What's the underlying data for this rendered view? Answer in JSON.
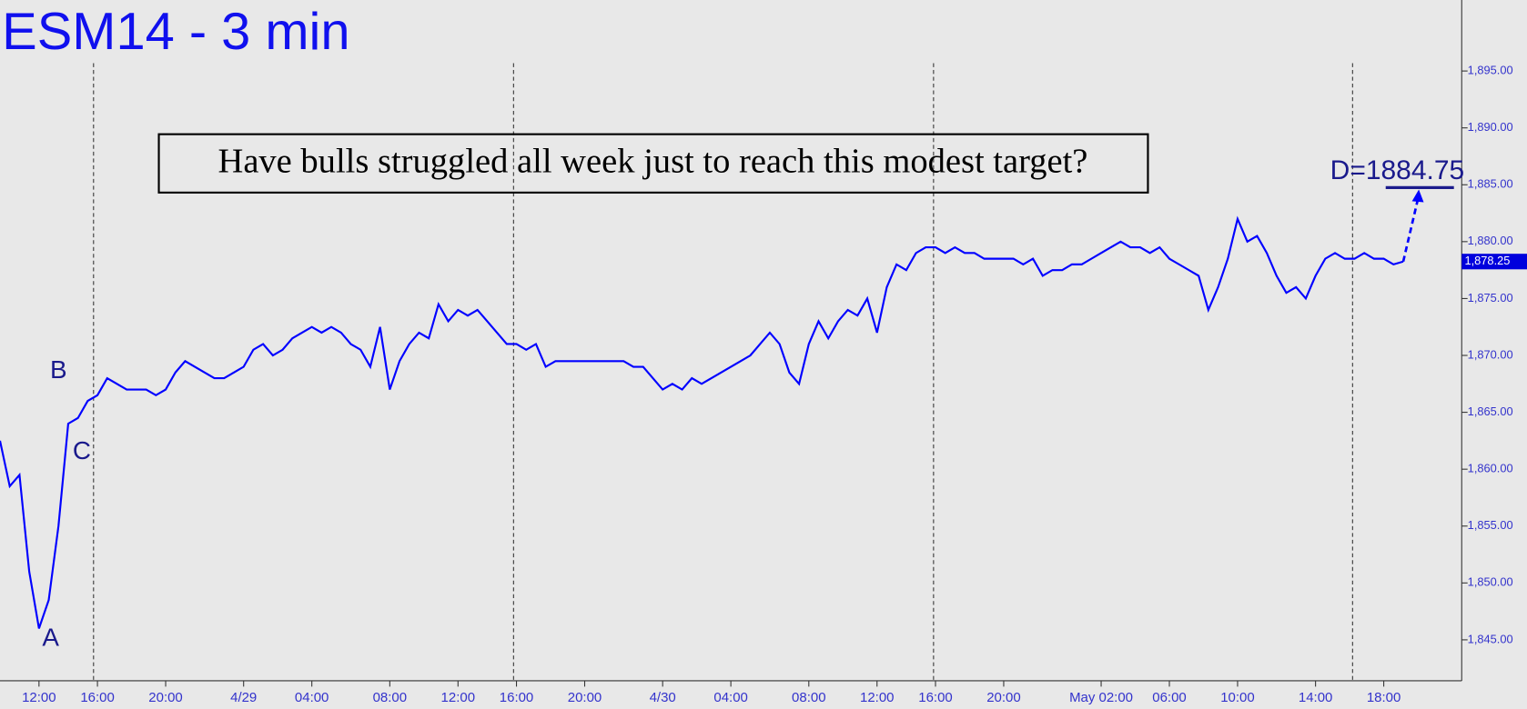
{
  "chart_data": {
    "type": "line",
    "title": "ESM14 - 3 min",
    "annotation": "Have bulls struggled all week just to reach this modest target?",
    "target_label": "D=1884.75",
    "target_value": 1884.75,
    "last_price_label": "1,878.25",
    "wave_labels": [
      "A",
      "B",
      "C"
    ],
    "categories": [
      null,
      null,
      null,
      null,
      "12:00",
      null,
      null,
      null,
      null,
      null,
      "16:00",
      null,
      null,
      null,
      null,
      null,
      null,
      "20:00",
      null,
      null,
      null,
      null,
      null,
      null,
      null,
      "4/29",
      null,
      null,
      null,
      null,
      null,
      null,
      "04:00",
      null,
      null,
      null,
      null,
      null,
      null,
      null,
      "08:00",
      null,
      null,
      null,
      null,
      null,
      null,
      "12:00",
      null,
      null,
      null,
      null,
      null,
      "16:00",
      null,
      null,
      null,
      null,
      null,
      null,
      "20:00",
      null,
      null,
      null,
      null,
      null,
      null,
      null,
      "4/30",
      null,
      null,
      null,
      null,
      null,
      null,
      "04:00",
      null,
      null,
      null,
      null,
      null,
      null,
      null,
      "08:00",
      null,
      null,
      null,
      null,
      null,
      null,
      "12:00",
      null,
      null,
      null,
      null,
      null,
      "16:00",
      null,
      null,
      null,
      null,
      null,
      null,
      "20:00",
      null,
      null,
      null,
      null,
      null,
      null,
      null,
      null,
      null,
      "May 02:00",
      null,
      null,
      null,
      null,
      null,
      null,
      "06:00",
      null,
      null,
      null,
      null,
      null,
      null,
      "10:00",
      null,
      null,
      null,
      null,
      null,
      null,
      null,
      "14:00",
      null,
      null,
      null,
      null,
      null,
      null,
      "18:00",
      null,
      null
    ],
    "series": [
      {
        "name": "ESM14",
        "color": "#0000ff",
        "values": [
          1862.5,
          1858.5,
          1859.5,
          1851,
          1846,
          1848.5,
          1855,
          1864,
          1864.5,
          1866,
          1866.5,
          1868,
          1867.5,
          1867,
          1867,
          1867,
          1866.5,
          1867,
          1868.5,
          1869.5,
          1869,
          1868.5,
          1868,
          1868,
          1868.5,
          1869,
          1870.5,
          1871,
          1870,
          1870.5,
          1871.5,
          1872,
          1872.5,
          1872,
          1872.5,
          1872,
          1871,
          1870.5,
          1869,
          1872.5,
          1867,
          1869.5,
          1871,
          1872,
          1871.5,
          1874.5,
          1873,
          1874,
          1873.5,
          1874,
          1873,
          1872,
          1871,
          1871,
          1870.5,
          1871,
          1869,
          1869.5,
          1869.5,
          1869.5,
          1869.5,
          1869.5,
          1869.5,
          1869.5,
          1869.5,
          1869,
          1869,
          1868,
          1867,
          1867.5,
          1867,
          1868,
          1867.5,
          1868,
          1868.5,
          1869,
          1869.5,
          1870,
          1871,
          1872,
          1871,
          1868.5,
          1867.5,
          1871,
          1873,
          1871.5,
          1873,
          1874,
          1873.5,
          1875,
          1872,
          1876,
          1878,
          1877.5,
          1879,
          1879.5,
          1879.5,
          1879,
          1879.5,
          1879,
          1879,
          1878.5,
          1878.5,
          1878.5,
          1878.5,
          1878,
          1878.5,
          1877,
          1877.5,
          1877.5,
          1878,
          1878,
          1878.5,
          1879,
          1879.5,
          1880,
          1879.5,
          1879.5,
          1879,
          1879.5,
          1878.5,
          1878,
          1877.5,
          1877,
          1874,
          1876,
          1878.5,
          1882,
          1880,
          1880.5,
          1879,
          1877,
          1875.5,
          1876,
          1875,
          1877,
          1878.5,
          1879,
          1878.5,
          1878.5,
          1879,
          1878.5,
          1878.5,
          1878,
          1878.25
        ]
      }
    ],
    "ylim": [
      1841.4,
      1901.24
    ],
    "yticks": [
      {
        "value": 1845,
        "label": "1,845.00"
      },
      {
        "value": 1850,
        "label": "1,850.00"
      },
      {
        "value": 1855,
        "label": "1,855.00"
      },
      {
        "value": 1860,
        "label": "1,860.00"
      },
      {
        "value": 1865,
        "label": "1,865.00"
      },
      {
        "value": 1870,
        "label": "1,870.00"
      },
      {
        "value": 1875,
        "label": "1,875.00"
      },
      {
        "value": 1880,
        "label": "1,880.00"
      },
      {
        "value": 1885,
        "label": "1,885.00"
      },
      {
        "value": 1890,
        "label": "1,890.00"
      },
      {
        "value": 1895,
        "label": "1,895.00"
      }
    ],
    "grid": false
  }
}
